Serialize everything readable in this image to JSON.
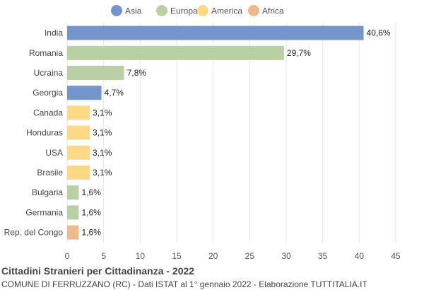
{
  "chart_data": {
    "type": "bar",
    "orientation": "horizontal",
    "title": "Cittadini Stranieri per Cittadinanza - 2022",
    "subtitle": "COMUNE DI FERRUZZANO (RC) - Dati ISTAT al 1° gennaio 2022 - Elaborazione TUTTITALIA.IT",
    "legend": [
      {
        "name": "Asia",
        "color": "#7494cc"
      },
      {
        "name": "Europa",
        "color": "#b9d0a4"
      },
      {
        "name": "America",
        "color": "#fdd986"
      },
      {
        "name": "Africa",
        "color": "#efb888"
      }
    ],
    "legend_position": "top",
    "categories": [
      "India",
      "Romania",
      "Ucraina",
      "Georgia",
      "Canada",
      "Honduras",
      "USA",
      "Brasile",
      "Bulgaria",
      "Germania",
      "Rep. del Congo"
    ],
    "values": [
      40.6,
      29.7,
      7.8,
      4.7,
      3.1,
      3.1,
      3.1,
      3.1,
      1.6,
      1.6,
      1.6
    ],
    "value_labels": [
      "40,6%",
      "29,7%",
      "7,8%",
      "4,7%",
      "3,1%",
      "3,1%",
      "3,1%",
      "3,1%",
      "1,6%",
      "1,6%",
      "1,6%"
    ],
    "groups": [
      "Asia",
      "Europa",
      "Europa",
      "Asia",
      "America",
      "America",
      "America",
      "America",
      "Europa",
      "Europa",
      "Africa"
    ],
    "xlim": [
      0,
      45
    ],
    "xticks": [
      0,
      5,
      10,
      15,
      20,
      25,
      30,
      35,
      40,
      45
    ],
    "grid": true
  }
}
